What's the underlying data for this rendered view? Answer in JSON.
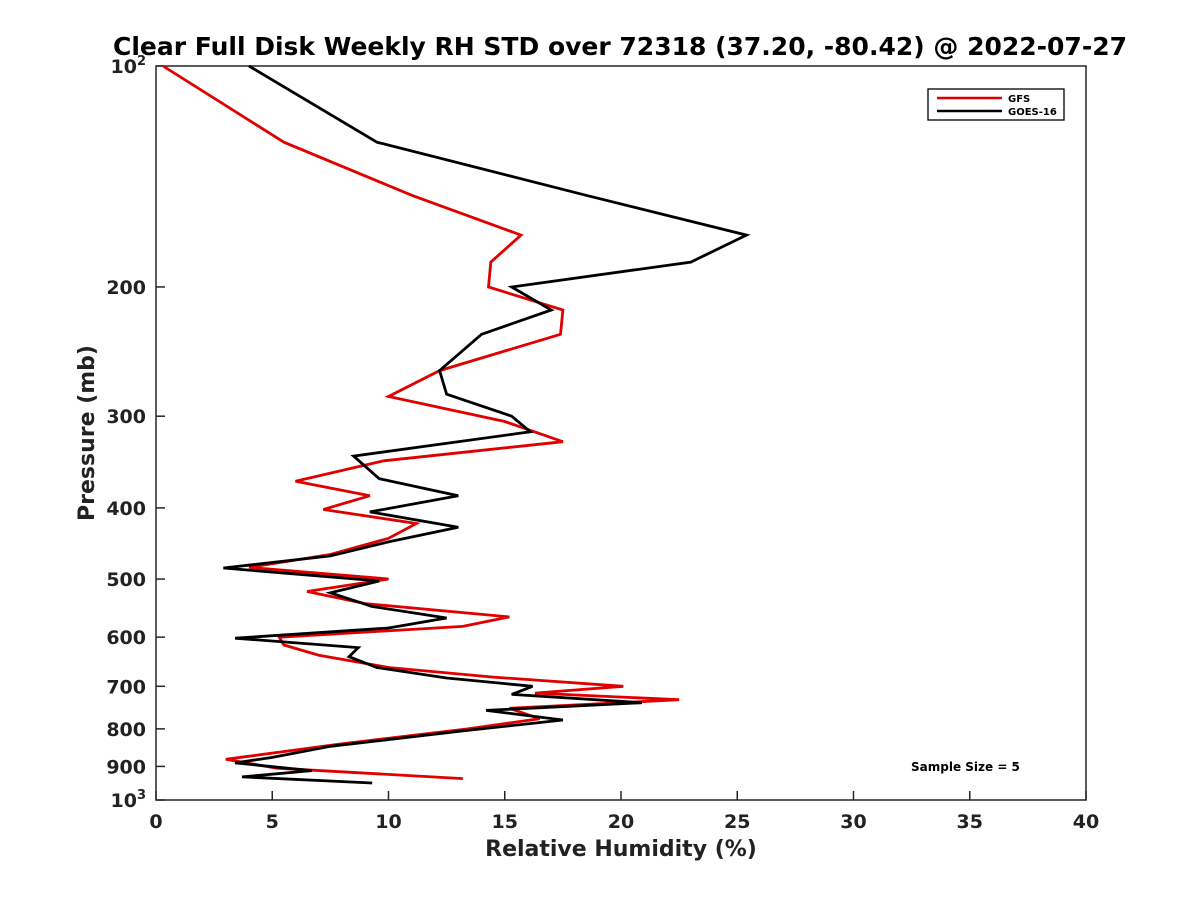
{
  "chart_data": {
    "type": "line",
    "title": "Clear Full Disk Weekly RH STD over 72318 (37.20, -80.42) @ 2022-07-27",
    "xlabel": "Relative Humidity (%)",
    "ylabel": "Pressure (mb)",
    "xlim": [
      0,
      40
    ],
    "ylim": [
      100,
      1000
    ],
    "y_scale": "log",
    "y_reversed": true,
    "x_ticks": [
      "0",
      "5",
      "10",
      "15",
      "20",
      "25",
      "30",
      "35",
      "40"
    ],
    "y_ticks": [
      {
        "value": 100,
        "base": "10",
        "exp": "2"
      },
      {
        "value": 200,
        "label": "200"
      },
      {
        "value": 300,
        "label": "300"
      },
      {
        "value": 400,
        "label": "400"
      },
      {
        "value": 500,
        "label": "500"
      },
      {
        "value": 600,
        "label": "600"
      },
      {
        "value": 700,
        "label": "700"
      },
      {
        "value": 800,
        "label": "800"
      },
      {
        "value": 900,
        "label": "900"
      },
      {
        "value": 1000,
        "base": "10",
        "exp": "3"
      }
    ],
    "legend_position": "top-right",
    "series": [
      {
        "name": "GFS",
        "color": "#e00000",
        "points": [
          [
            0.3,
            100
          ],
          [
            5.5,
            127
          ],
          [
            11.0,
            150
          ],
          [
            15.7,
            170
          ],
          [
            14.4,
            185
          ],
          [
            14.3,
            200
          ],
          [
            17.5,
            215
          ],
          [
            17.4,
            232
          ],
          [
            12.2,
            260
          ],
          [
            10.0,
            282
          ],
          [
            15.0,
            305
          ],
          [
            17.5,
            325
          ],
          [
            9.8,
            345
          ],
          [
            6.0,
            368
          ],
          [
            9.2,
            385
          ],
          [
            7.2,
            402
          ],
          [
            11.2,
            420
          ],
          [
            10.0,
            440
          ],
          [
            7.5,
            463
          ],
          [
            4.0,
            482
          ],
          [
            10.0,
            500
          ],
          [
            6.5,
            520
          ],
          [
            9.0,
            540
          ],
          [
            15.2,
            563
          ],
          [
            13.2,
            580
          ],
          [
            5.3,
            600
          ],
          [
            5.5,
            615
          ],
          [
            7.0,
            635
          ],
          [
            10.0,
            660
          ],
          [
            14.5,
            680
          ],
          [
            20.1,
            700
          ],
          [
            16.3,
            715
          ],
          [
            22.5,
            730
          ],
          [
            15.2,
            750
          ],
          [
            16.5,
            775
          ],
          [
            13.4,
            800
          ],
          [
            7.8,
            840
          ],
          [
            3.0,
            880
          ],
          [
            5.2,
            905
          ],
          [
            13.2,
            935
          ]
        ]
      },
      {
        "name": "GOES-16",
        "color": "#000000",
        "points": [
          [
            4.0,
            100
          ],
          [
            9.5,
            127
          ],
          [
            18.5,
            150
          ],
          [
            25.4,
            170
          ],
          [
            23.0,
            185
          ],
          [
            15.3,
            200
          ],
          [
            17.0,
            215
          ],
          [
            14.0,
            232
          ],
          [
            12.2,
            260
          ],
          [
            12.5,
            280
          ],
          [
            15.3,
            300
          ],
          [
            16.1,
            315
          ],
          [
            8.5,
            340
          ],
          [
            9.6,
            365
          ],
          [
            13.0,
            385
          ],
          [
            9.2,
            405
          ],
          [
            13.0,
            425
          ],
          [
            10.0,
            445
          ],
          [
            7.5,
            465
          ],
          [
            2.9,
            483
          ],
          [
            9.6,
            503
          ],
          [
            7.5,
            522
          ],
          [
            9.3,
            545
          ],
          [
            12.5,
            565
          ],
          [
            10.0,
            583
          ],
          [
            3.4,
            602
          ],
          [
            8.7,
            620
          ],
          [
            8.3,
            638
          ],
          [
            9.5,
            660
          ],
          [
            12.5,
            682
          ],
          [
            16.2,
            700
          ],
          [
            15.3,
            718
          ],
          [
            20.9,
            737
          ],
          [
            14.2,
            755
          ],
          [
            17.5,
            778
          ],
          [
            13.2,
            805
          ],
          [
            7.5,
            845
          ],
          [
            5.0,
            875
          ],
          [
            3.4,
            890
          ],
          [
            6.7,
            912
          ],
          [
            3.7,
            930
          ],
          [
            9.3,
            948
          ]
        ]
      }
    ],
    "annotations": [
      "Sample Size = 5"
    ]
  }
}
